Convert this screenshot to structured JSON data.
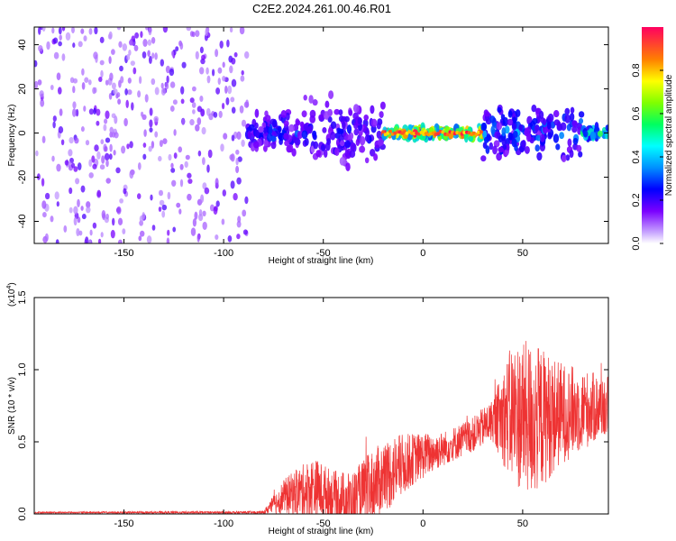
{
  "title": "C2E2.2024.261.00.46.R01",
  "chart_data": [
    {
      "type": "heatmap",
      "xlabel": "Height of straight line (km)",
      "ylabel": "Frequency (Hz)",
      "xlim": [
        -195,
        93
      ],
      "ylim": [
        -50,
        48
      ],
      "xticks": [
        -150,
        -100,
        -50,
        0,
        50
      ],
      "yticks": [
        -40,
        -20,
        0,
        20,
        40
      ],
      "colorbar": {
        "label": "Normalized spectral amplitude",
        "range": [
          0.0,
          1.0
        ],
        "ticks": [
          "0.0",
          "0.2",
          "0.4",
          "0.6",
          "0.8"
        ],
        "colormap": [
          "#d8c8ff",
          "#7a00ff",
          "#0000ff",
          "#00c8ff",
          "#00ff80",
          "#80ff00",
          "#ffff00",
          "#ff8000",
          "#ff0060"
        ]
      },
      "regions": [
        {
          "x": [
            -195,
            -88
          ],
          "freq_spread": 48,
          "amplitude": 0.05,
          "pattern": "scattered noise"
        },
        {
          "x": [
            -88,
            -60
          ],
          "freq_spread": 12,
          "amplitude": 0.25
        },
        {
          "x": [
            -60,
            -20
          ],
          "freq_spread": 20,
          "amplitude": 0.2
        },
        {
          "x": [
            -20,
            30
          ],
          "freq_spread": 4,
          "amplitude": 0.9,
          "note": "narrow band near 0 Hz"
        },
        {
          "x": [
            30,
            80
          ],
          "freq_spread": 18,
          "amplitude": 0.3
        },
        {
          "x": [
            80,
            93
          ],
          "freq_spread": 4,
          "amplitude": 0.5
        }
      ],
      "grid": false
    },
    {
      "type": "line",
      "xlabel": "Height of straight line (km)",
      "ylabel": "SNR (10 * v/v)",
      "y_scale_note": "(x10^4)",
      "y_multiplier_base": "(x10",
      "y_multiplier_exp": "4",
      "y_multiplier_close": ")",
      "xlim": [
        -195,
        93
      ],
      "ylim": [
        0.0,
        1.5
      ],
      "xticks": [
        -150,
        -100,
        -50,
        0,
        50
      ],
      "yticks": [
        "0.0",
        "0.5",
        "1.0",
        "1.5"
      ],
      "color": "#ee3333",
      "envelope": [
        {
          "x": -195,
          "mean": 0.01,
          "spread": 0.005
        },
        {
          "x": -80,
          "mean": 0.01,
          "spread": 0.01
        },
        {
          "x": -70,
          "mean": 0.12,
          "spread": 0.12
        },
        {
          "x": -55,
          "mean": 0.18,
          "spread": 0.22
        },
        {
          "x": -45,
          "mean": 0.12,
          "spread": 0.18
        },
        {
          "x": -35,
          "mean": 0.08,
          "spread": 0.22
        },
        {
          "x": -25,
          "mean": 0.2,
          "spread": 0.25
        },
        {
          "x": -15,
          "mean": 0.3,
          "spread": 0.25
        },
        {
          "x": -5,
          "mean": 0.38,
          "spread": 0.18
        },
        {
          "x": 10,
          "mean": 0.45,
          "spread": 0.12
        },
        {
          "x": 25,
          "mean": 0.55,
          "spread": 0.12
        },
        {
          "x": 35,
          "mean": 0.65,
          "spread": 0.15
        },
        {
          "x": 45,
          "mean": 0.7,
          "spread": 0.5
        },
        {
          "x": 55,
          "mean": 0.65,
          "spread": 0.55
        },
        {
          "x": 70,
          "mean": 0.7,
          "spread": 0.35
        },
        {
          "x": 93,
          "mean": 0.75,
          "spread": 0.2
        }
      ],
      "grid": false
    }
  ]
}
